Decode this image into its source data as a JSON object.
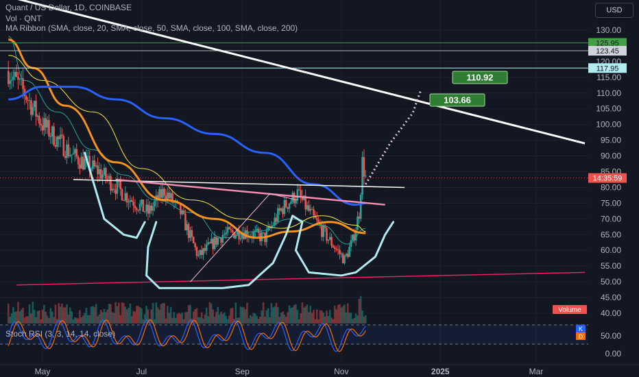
{
  "header": {
    "title": "Quant / US Dollar, 1D, COINBASE",
    "volume_label": "Vol · QNT",
    "ribbon_label": "MA Ribbon (SMA, close, 20, SMA, close, 50, SMA, close, 100, SMA, close, 200)",
    "currency": "USD"
  },
  "rsi_panel": {
    "label": "Stoch RSI (3, 3, 14, 14, close)",
    "k_tag": "K",
    "d_tag": "D"
  },
  "volume_tag": "Volume",
  "colors": {
    "bg": "#131722",
    "up": "#26a69a",
    "down": "#ef5350",
    "sma20": "#26a69a",
    "sma50": "#ffeb3b",
    "sma100": "#f7931a",
    "sma200": "#2962ff",
    "rsi_k": "#2962ff",
    "rsi_d": "#ff6d00",
    "trend_white": "#ffffff",
    "neckline_pink": "#f48fb1",
    "cup_outline": "#b2ebf2",
    "support_red": "#e91e63",
    "target_green": "#2e7d32"
  },
  "chart_data": {
    "type": "candlestick",
    "symbol": "Quant / US Dollar",
    "interval": "1D",
    "exchange": "COINBASE",
    "x_ticks": [
      "May",
      "Jul",
      "Sep",
      "Nov",
      "2025",
      "Mar"
    ],
    "x_tick_dates": [
      "2024-05-01",
      "2024-07-01",
      "2024-09-01",
      "2024-11-01",
      "2025-01-01",
      "2025-03-01"
    ],
    "price_axis": [
      130.0,
      125.0,
      120.0,
      115.0,
      110.0,
      105.0,
      100.0,
      95.0,
      90.0,
      85.0,
      80.0,
      75.0,
      70.0,
      65.0,
      60.0,
      55.0,
      50.0,
      45.0,
      40.0
    ],
    "price_axis_labels": [
      "130.00",
      "125.00",
      "120.00",
      "115.00",
      "110.00",
      "105.00",
      "100.00",
      "95.00",
      "90.00",
      "85.00",
      "80.00",
      "75.00",
      "70.00",
      "65.00",
      "60.00",
      "55.00",
      "50.00",
      "45.00",
      "40.00"
    ],
    "rsi_axis": [
      50.0,
      0.0
    ],
    "rsi_axis_labels": [
      "50.00",
      "0.00"
    ],
    "ylim": [
      36,
      134
    ],
    "price_levels": [
      {
        "value": 125.95,
        "label": "125.95",
        "color": "#43a047"
      },
      {
        "value": 123.45,
        "label": "123.45",
        "color": "#b2b5be"
      },
      {
        "value": 117.95,
        "label": "117.95",
        "color": "#b2ebf2"
      }
    ],
    "current_price_tag": {
      "value": 83.0,
      "label": "14:35:59",
      "color": "#ef5350"
    },
    "targets": [
      {
        "value": 110.92,
        "label": "110.92"
      },
      {
        "value": 103.66,
        "label": "103.66"
      }
    ],
    "trend_lines": [
      {
        "name": "resistance",
        "from": {
          "date": "2024-04-15",
          "price": 140
        },
        "to": {
          "date": "2025-03-31",
          "price": 94
        }
      },
      {
        "name": "neckline-white",
        "from": {
          "date": "2024-05-20",
          "price": 82.5
        },
        "to": {
          "date": "2024-12-10",
          "price": 80
        }
      },
      {
        "name": "neckline-pink",
        "from": {
          "date": "2024-06-15",
          "price": 82.5
        },
        "to": {
          "date": "2024-11-28",
          "price": 74.5
        }
      },
      {
        "name": "support",
        "from": {
          "date": "2024-04-15",
          "price": 49
        },
        "to": {
          "date": "2025-03-31",
          "price": 53
        }
      }
    ],
    "anchors": [
      {
        "date": "2024-04-10",
        "price": 117.0
      },
      {
        "date": "2024-04-20",
        "price": 110.0
      },
      {
        "date": "2024-05-01",
        "price": 100.0
      },
      {
        "date": "2024-05-20",
        "price": 90.0
      },
      {
        "date": "2024-06-05",
        "price": 85.0
      },
      {
        "date": "2024-06-20",
        "price": 78.0
      },
      {
        "date": "2024-07-05",
        "price": 72.0
      },
      {
        "date": "2024-07-15",
        "price": 79.0
      },
      {
        "date": "2024-07-25",
        "price": 72.0
      },
      {
        "date": "2024-08-05",
        "price": 58.0
      },
      {
        "date": "2024-08-20",
        "price": 65.0
      },
      {
        "date": "2024-09-01",
        "price": 66.0
      },
      {
        "date": "2024-09-15",
        "price": 64.0
      },
      {
        "date": "2024-09-25",
        "price": 73.0
      },
      {
        "date": "2024-10-05",
        "price": 78.0
      },
      {
        "date": "2024-10-15",
        "price": 70.0
      },
      {
        "date": "2024-10-25",
        "price": 63.0
      },
      {
        "date": "2024-11-03",
        "price": 57.0
      },
      {
        "date": "2024-11-08",
        "price": 63.0
      },
      {
        "date": "2024-11-12",
        "price": 72.0
      },
      {
        "date": "2024-11-14",
        "price": 88.0
      },
      {
        "date": "2024-11-16",
        "price": 83.0
      }
    ],
    "sma": [
      {
        "name": "SMA 20",
        "points": [
          [
            "2024-04-10",
            128
          ],
          [
            "2024-04-20",
            114
          ],
          [
            "2024-05-10",
            104
          ],
          [
            "2024-06-01",
            92
          ],
          [
            "2024-06-20",
            84
          ],
          [
            "2024-07-10",
            76
          ],
          [
            "2024-08-01",
            72
          ],
          [
            "2024-08-20",
            64
          ],
          [
            "2024-09-10",
            66
          ],
          [
            "2024-10-01",
            70
          ],
          [
            "2024-10-20",
            68
          ],
          [
            "2024-11-05",
            62
          ],
          [
            "2024-11-16",
            67
          ]
        ]
      },
      {
        "name": "SMA 50",
        "points": [
          [
            "2024-04-10",
            122
          ],
          [
            "2024-05-01",
            114
          ],
          [
            "2024-06-01",
            104
          ],
          [
            "2024-07-01",
            86
          ],
          [
            "2024-08-01",
            76
          ],
          [
            "2024-09-01",
            70
          ],
          [
            "2024-09-25",
            67
          ],
          [
            "2024-10-20",
            71
          ],
          [
            "2024-11-10",
            68
          ],
          [
            "2024-11-16",
            66
          ]
        ]
      },
      {
        "name": "SMA 100",
        "points": [
          [
            "2024-04-10",
            127
          ],
          [
            "2024-04-25",
            118
          ],
          [
            "2024-05-15",
            106
          ],
          [
            "2024-06-15",
            88
          ],
          [
            "2024-07-15",
            76
          ],
          [
            "2024-08-15",
            70
          ],
          [
            "2024-09-10",
            64
          ],
          [
            "2024-10-01",
            66
          ],
          [
            "2024-10-25",
            69
          ],
          [
            "2024-11-16",
            65.5
          ]
        ]
      },
      {
        "name": "SMA 200",
        "points": [
          [
            "2024-04-10",
            108
          ],
          [
            "2024-05-01",
            112
          ],
          [
            "2024-05-20",
            112
          ],
          [
            "2024-06-15",
            108
          ],
          [
            "2024-07-15",
            102
          ],
          [
            "2024-08-15",
            97
          ],
          [
            "2024-09-15",
            91
          ],
          [
            "2024-10-15",
            81
          ],
          [
            "2024-11-10",
            74.5
          ],
          [
            "2024-11-16",
            75
          ]
        ]
      }
    ],
    "projection": [
      [
        "2024-11-16",
        81
      ],
      [
        "2024-12-01",
        94
      ],
      [
        "2024-12-15",
        103.66
      ],
      [
        "2024-12-20",
        110.92
      ]
    ]
  }
}
